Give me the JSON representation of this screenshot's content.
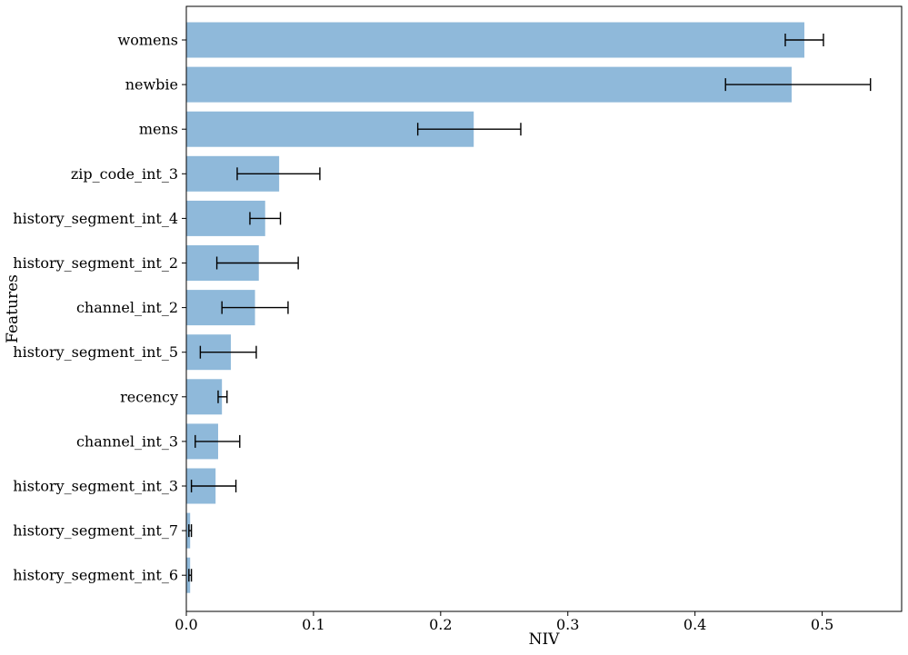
{
  "chart_data": {
    "type": "bar",
    "orientation": "horizontal",
    "xlabel": "NIV",
    "ylabel": "Features",
    "xlim": [
      0,
      0.5625
    ],
    "xticks": [
      "0.0",
      "0.1",
      "0.2",
      "0.3",
      "0.4",
      "0.5"
    ],
    "grid": false,
    "legend": "none",
    "bar_color": "#8fb9da",
    "error_color": "#000000",
    "categories": [
      "womens",
      "newbie",
      "mens",
      "zip_code_int_3",
      "history_segment_int_4",
      "history_segment_int_2",
      "channel_int_2",
      "history_segment_int_5",
      "recency",
      "channel_int_3",
      "history_segment_int_3",
      "history_segment_int_7",
      "history_segment_int_6"
    ],
    "values": [
      0.486,
      0.476,
      0.226,
      0.073,
      0.062,
      0.057,
      0.054,
      0.035,
      0.028,
      0.025,
      0.023,
      0.003,
      0.003
    ],
    "error_low": [
      0.471,
      0.424,
      0.182,
      0.04,
      0.05,
      0.024,
      0.028,
      0.011,
      0.025,
      0.007,
      0.004,
      0.002,
      0.002
    ],
    "error_high": [
      0.501,
      0.538,
      0.263,
      0.105,
      0.074,
      0.088,
      0.08,
      0.055,
      0.032,
      0.042,
      0.039,
      0.004,
      0.004
    ]
  }
}
